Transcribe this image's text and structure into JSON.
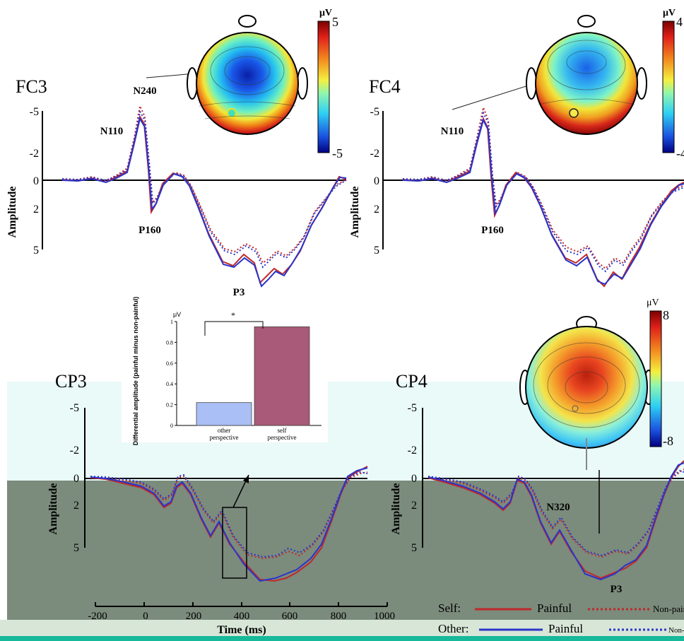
{
  "panels": [
    {
      "id": "FC3",
      "label": "FC3",
      "peaks": [
        "N110",
        "N240",
        "P160",
        "P3"
      ]
    },
    {
      "id": "FC4",
      "label": "FC4",
      "peaks": [
        "N110",
        "P160"
      ]
    },
    {
      "id": "CP3",
      "label": "CP3",
      "peaks": []
    },
    {
      "id": "CP4",
      "label": "CP4",
      "peaks": [
        "N320",
        "P3"
      ]
    }
  ],
  "axes": {
    "ylabel": "Amplitude",
    "yticks": [
      "-5",
      "-2",
      "0",
      "2",
      "5"
    ],
    "xlabel": "Time (ms)",
    "xticks": [
      "-200",
      "0",
      "200",
      "400",
      "600",
      "800",
      "1000"
    ]
  },
  "topomaps": [
    {
      "unit": "μV",
      "max": "5",
      "min": "-5"
    },
    {
      "unit": "μV",
      "max": "4",
      "min": "-4"
    },
    {
      "unit": "μV",
      "max": "8",
      "min": "-8"
    }
  ],
  "inset": {
    "unit": "μV",
    "ylabel": "Differential amplitude (painful minus non-painful)",
    "significance": "*"
  },
  "legend": {
    "rows": [
      {
        "group": "Self:",
        "painful": "Painful",
        "nonpainful": "Non-painful"
      },
      {
        "group": "Other:",
        "painful": "Painful",
        "nonpainful": "Non-painful"
      }
    ],
    "colors": {
      "self": "#c0282a",
      "other": "#2b34c8"
    }
  },
  "chart_data": [
    {
      "type": "bar",
      "categories": [
        "other perspective",
        "self perspective"
      ],
      "values": [
        0.22,
        0.95
      ],
      "ylim": [
        0,
        1
      ],
      "yticks": [
        0,
        0.2,
        0.4,
        0.6,
        0.8,
        1
      ],
      "ylabel": "Differential amplitude (painful minus non-painful)",
      "unit": "μV",
      "colors": [
        "#a9bff5",
        "#a85a78"
      ],
      "significance": "*"
    }
  ]
}
